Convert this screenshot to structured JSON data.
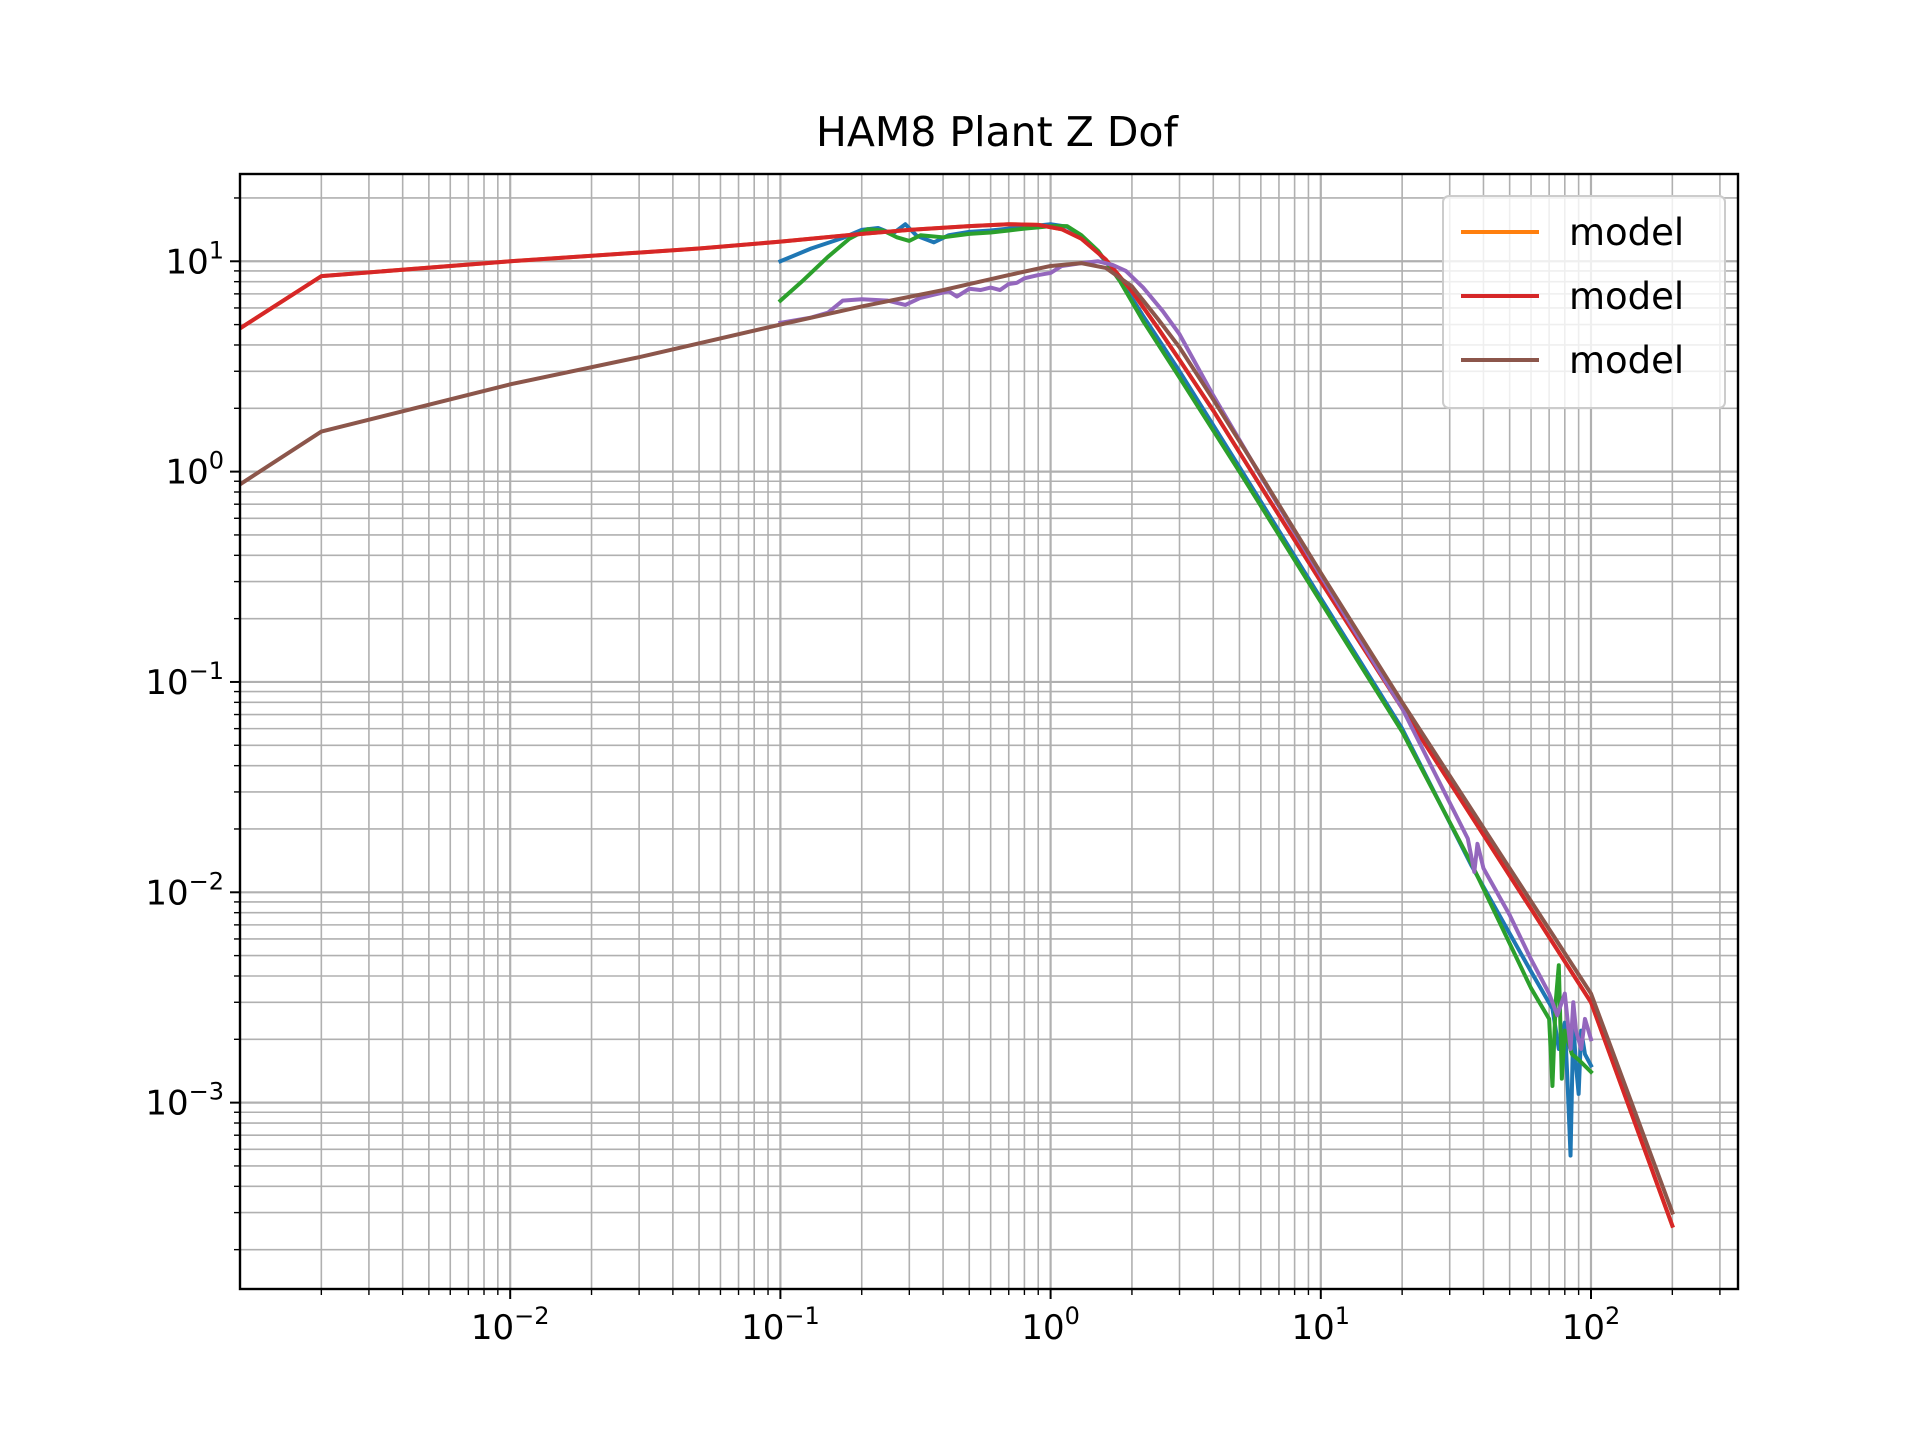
{
  "chart_data": {
    "type": "line",
    "title": "HAM8 Plant Z Dof",
    "xlabel": "",
    "ylabel": "",
    "xscale": "log",
    "yscale": "log",
    "xlim": [
      0.001,
      350
    ],
    "ylim": [
      0.00013,
      26
    ],
    "grid": "major and minor, both axes",
    "legend_position": "top-right",
    "x_tick_labels": [
      {
        "base": "10",
        "exp": "−2",
        "value": 0.01
      },
      {
        "base": "10",
        "exp": "−1",
        "value": 0.1
      },
      {
        "base": "10",
        "exp": "0",
        "value": 1
      },
      {
        "base": "10",
        "exp": "1",
        "value": 10
      },
      {
        "base": "10",
        "exp": "2",
        "value": 100
      }
    ],
    "y_tick_labels": [
      {
        "base": "10",
        "exp": "1",
        "value": 10
      },
      {
        "base": "10",
        "exp": "0",
        "value": 1
      },
      {
        "base": "10",
        "exp": "−1",
        "value": 0.1
      },
      {
        "base": "10",
        "exp": "−2",
        "value": 0.01
      },
      {
        "base": "10",
        "exp": "−3",
        "value": 0.001
      }
    ],
    "series": [
      {
        "color": "#1f77b4",
        "points": [
          [
            0.1,
            10.0
          ],
          [
            0.13,
            11.5
          ],
          [
            0.17,
            12.9
          ],
          [
            0.2,
            14.1
          ],
          [
            0.23,
            14.4
          ],
          [
            0.26,
            13.5
          ],
          [
            0.29,
            15.0
          ],
          [
            0.32,
            13.2
          ],
          [
            0.37,
            12.3
          ],
          [
            0.42,
            13.3
          ],
          [
            0.5,
            13.8
          ],
          [
            0.6,
            14.0
          ],
          [
            0.7,
            14.3
          ],
          [
            0.8,
            14.6
          ],
          [
            0.9,
            14.8
          ],
          [
            1.0,
            15.0
          ],
          [
            1.15,
            14.6
          ],
          [
            1.3,
            13.2
          ],
          [
            1.5,
            11.0
          ],
          [
            1.8,
            8.3
          ],
          [
            2.2,
            5.5
          ],
          [
            3.0,
            3.0
          ],
          [
            5.0,
            1.05
          ],
          [
            10.0,
            0.25
          ],
          [
            20.0,
            0.06
          ],
          [
            36.0,
            0.0135
          ],
          [
            60.0,
            0.0042
          ],
          [
            72.0,
            0.0028
          ],
          [
            76.0,
            0.0018
          ],
          [
            80.0,
            0.0024
          ],
          [
            82.0,
            0.0012
          ],
          [
            84.0,
            0.00056
          ],
          [
            86.0,
            0.0024
          ],
          [
            88.0,
            0.0015
          ],
          [
            90.0,
            0.0011
          ],
          [
            92.0,
            0.0022
          ],
          [
            95.0,
            0.0017
          ],
          [
            100.0,
            0.0015
          ]
        ]
      },
      {
        "name": "model",
        "color": "#ff7f0e",
        "points": [
          [
            0.001,
            4.8
          ],
          [
            0.002,
            8.5
          ],
          [
            0.01,
            10.0
          ],
          [
            0.05,
            11.5
          ],
          [
            0.1,
            12.4
          ],
          [
            0.2,
            13.5
          ],
          [
            0.3,
            14.1
          ],
          [
            0.5,
            14.7
          ],
          [
            0.7,
            15.0
          ],
          [
            0.9,
            14.9
          ],
          [
            1.1,
            14.2
          ],
          [
            1.3,
            12.8
          ],
          [
            1.6,
            10.2
          ],
          [
            2.0,
            7.2
          ],
          [
            2.5,
            4.8
          ],
          [
            3.0,
            3.4
          ],
          [
            4.0,
            1.95
          ],
          [
            6.0,
            0.85
          ],
          [
            10.0,
            0.3
          ],
          [
            20.0,
            0.075
          ],
          [
            50.0,
            0.012
          ],
          [
            100.0,
            0.003
          ],
          [
            200.0,
            0.00026
          ]
        ]
      },
      {
        "color": "#2ca02c",
        "points": [
          [
            0.1,
            6.5
          ],
          [
            0.12,
            8.0
          ],
          [
            0.15,
            10.5
          ],
          [
            0.18,
            12.8
          ],
          [
            0.21,
            14.2
          ],
          [
            0.24,
            14.0
          ],
          [
            0.27,
            13.0
          ],
          [
            0.3,
            12.5
          ],
          [
            0.33,
            13.3
          ],
          [
            0.4,
            13.0
          ],
          [
            0.5,
            13.5
          ],
          [
            0.6,
            13.7
          ],
          [
            0.7,
            14.0
          ],
          [
            0.8,
            14.3
          ],
          [
            0.9,
            14.5
          ],
          [
            1.0,
            14.7
          ],
          [
            1.15,
            14.7
          ],
          [
            1.3,
            13.3
          ],
          [
            1.5,
            11.2
          ],
          [
            1.8,
            8.1
          ],
          [
            2.2,
            5.2
          ],
          [
            3.0,
            2.8
          ],
          [
            5.0,
            1.0
          ],
          [
            10.0,
            0.24
          ],
          [
            20.0,
            0.058
          ],
          [
            36.0,
            0.0138
          ],
          [
            60.0,
            0.0035
          ],
          [
            70.0,
            0.0025
          ],
          [
            72.0,
            0.0012
          ],
          [
            74.0,
            0.003
          ],
          [
            76.0,
            0.0045
          ],
          [
            78.0,
            0.0013
          ],
          [
            80.0,
            0.0022
          ],
          [
            85.0,
            0.0017
          ],
          [
            90.0,
            0.0016
          ],
          [
            100.0,
            0.0014
          ]
        ]
      },
      {
        "name": "model",
        "color": "#d62728",
        "points": [
          [
            0.001,
            4.8
          ],
          [
            0.002,
            8.5
          ],
          [
            0.01,
            10.0
          ],
          [
            0.05,
            11.5
          ],
          [
            0.1,
            12.4
          ],
          [
            0.2,
            13.5
          ],
          [
            0.3,
            14.1
          ],
          [
            0.5,
            14.7
          ],
          [
            0.7,
            15.0
          ],
          [
            0.9,
            14.9
          ],
          [
            1.1,
            14.2
          ],
          [
            1.3,
            12.8
          ],
          [
            1.6,
            10.2
          ],
          [
            2.0,
            7.2
          ],
          [
            2.5,
            4.8
          ],
          [
            3.0,
            3.4
          ],
          [
            4.0,
            1.95
          ],
          [
            6.0,
            0.85
          ],
          [
            10.0,
            0.3
          ],
          [
            20.0,
            0.075
          ],
          [
            50.0,
            0.012
          ],
          [
            100.0,
            0.003
          ],
          [
            200.0,
            0.00026
          ]
        ]
      },
      {
        "color": "#9467bd",
        "points": [
          [
            0.1,
            5.1
          ],
          [
            0.13,
            5.4
          ],
          [
            0.15,
            5.7
          ],
          [
            0.17,
            6.5
          ],
          [
            0.2,
            6.6
          ],
          [
            0.25,
            6.5
          ],
          [
            0.29,
            6.2
          ],
          [
            0.33,
            6.7
          ],
          [
            0.38,
            7.0
          ],
          [
            0.42,
            7.2
          ],
          [
            0.45,
            6.8
          ],
          [
            0.5,
            7.4
          ],
          [
            0.55,
            7.3
          ],
          [
            0.6,
            7.5
          ],
          [
            0.65,
            7.3
          ],
          [
            0.7,
            7.8
          ],
          [
            0.75,
            7.9
          ],
          [
            0.8,
            8.3
          ],
          [
            0.9,
            8.6
          ],
          [
            1.0,
            8.8
          ],
          [
            1.1,
            9.5
          ],
          [
            1.3,
            9.8
          ],
          [
            1.5,
            10.0
          ],
          [
            1.7,
            9.6
          ],
          [
            1.9,
            9.0
          ],
          [
            2.2,
            7.5
          ],
          [
            2.6,
            5.8
          ],
          [
            3.0,
            4.5
          ],
          [
            4.0,
            2.3
          ],
          [
            6.0,
            0.95
          ],
          [
            10.0,
            0.32
          ],
          [
            20.0,
            0.075
          ],
          [
            35.0,
            0.018
          ],
          [
            37.0,
            0.0125
          ],
          [
            38.0,
            0.017
          ],
          [
            40.0,
            0.013
          ],
          [
            50.0,
            0.0078
          ],
          [
            60.0,
            0.0048
          ],
          [
            70.0,
            0.0033
          ],
          [
            75.0,
            0.0026
          ],
          [
            80.0,
            0.0033
          ],
          [
            84.0,
            0.0018
          ],
          [
            86.0,
            0.003
          ],
          [
            88.0,
            0.0022
          ],
          [
            92.0,
            0.0018
          ],
          [
            95.0,
            0.0025
          ],
          [
            100.0,
            0.002
          ]
        ]
      },
      {
        "name": "model",
        "color": "#8c564b",
        "points": [
          [
            0.001,
            0.87
          ],
          [
            0.002,
            1.55
          ],
          [
            0.01,
            2.6
          ],
          [
            0.03,
            3.5
          ],
          [
            0.1,
            5.0
          ],
          [
            0.2,
            6.1
          ],
          [
            0.4,
            7.3
          ],
          [
            0.7,
            8.6
          ],
          [
            1.0,
            9.5
          ],
          [
            1.3,
            9.8
          ],
          [
            1.6,
            9.3
          ],
          [
            2.0,
            7.6
          ],
          [
            2.5,
            5.3
          ],
          [
            3.0,
            3.9
          ],
          [
            4.0,
            2.2
          ],
          [
            6.0,
            0.96
          ],
          [
            10.0,
            0.33
          ],
          [
            20.0,
            0.08
          ],
          [
            50.0,
            0.013
          ],
          [
            100.0,
            0.0033
          ],
          [
            200.0,
            0.0003
          ]
        ]
      }
    ]
  }
}
